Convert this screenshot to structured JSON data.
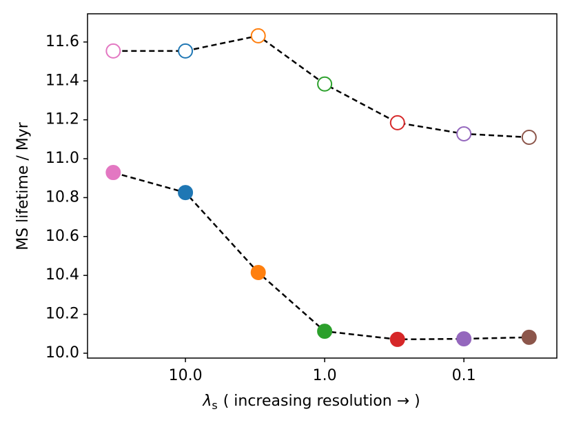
{
  "chart_data": {
    "type": "line",
    "ylabel": "MS lifetime / Myr",
    "xlabel": {
      "symbol": "λ",
      "subscript": "s",
      "text": "( increasing resolution → )"
    },
    "x": [
      33,
      10,
      3,
      1,
      0.3,
      0.1,
      0.034
    ],
    "colors": [
      "#e377c2",
      "#1f77b4",
      "#ff7f0e",
      "#2ca02c",
      "#d62728",
      "#9467bd",
      "#8c564b"
    ],
    "line_color": "#000000",
    "series": [
      {
        "filled": false,
        "values": [
          11.554,
          11.554,
          11.632,
          11.384,
          11.185,
          11.128,
          11.11
        ]
      },
      {
        "filled": true,
        "values": [
          10.929,
          10.826,
          10.415,
          10.113,
          10.071,
          10.074,
          10.082
        ]
      }
    ],
    "xscale": "log",
    "xlim": [
      50.5,
      0.0215
    ],
    "xticks": [
      {
        "value": 10,
        "label": "10.0"
      },
      {
        "value": 1,
        "label": "1.0"
      },
      {
        "value": 0.1,
        "label": "0.1"
      }
    ],
    "ylim": [
      9.975,
      11.745
    ],
    "yticks": [
      {
        "value": 10,
        "label": "10.0"
      },
      {
        "value": 10.2,
        "label": "10.2"
      },
      {
        "value": 10.4,
        "label": "10.4"
      },
      {
        "value": 10.6,
        "label": "10.6"
      },
      {
        "value": 10.8,
        "label": "10.8"
      },
      {
        "value": 11,
        "label": "11.0"
      },
      {
        "value": 11.2,
        "label": "11.2"
      },
      {
        "value": 11.4,
        "label": "11.4"
      },
      {
        "value": 11.6,
        "label": "11.6"
      }
    ],
    "grid": false
  }
}
